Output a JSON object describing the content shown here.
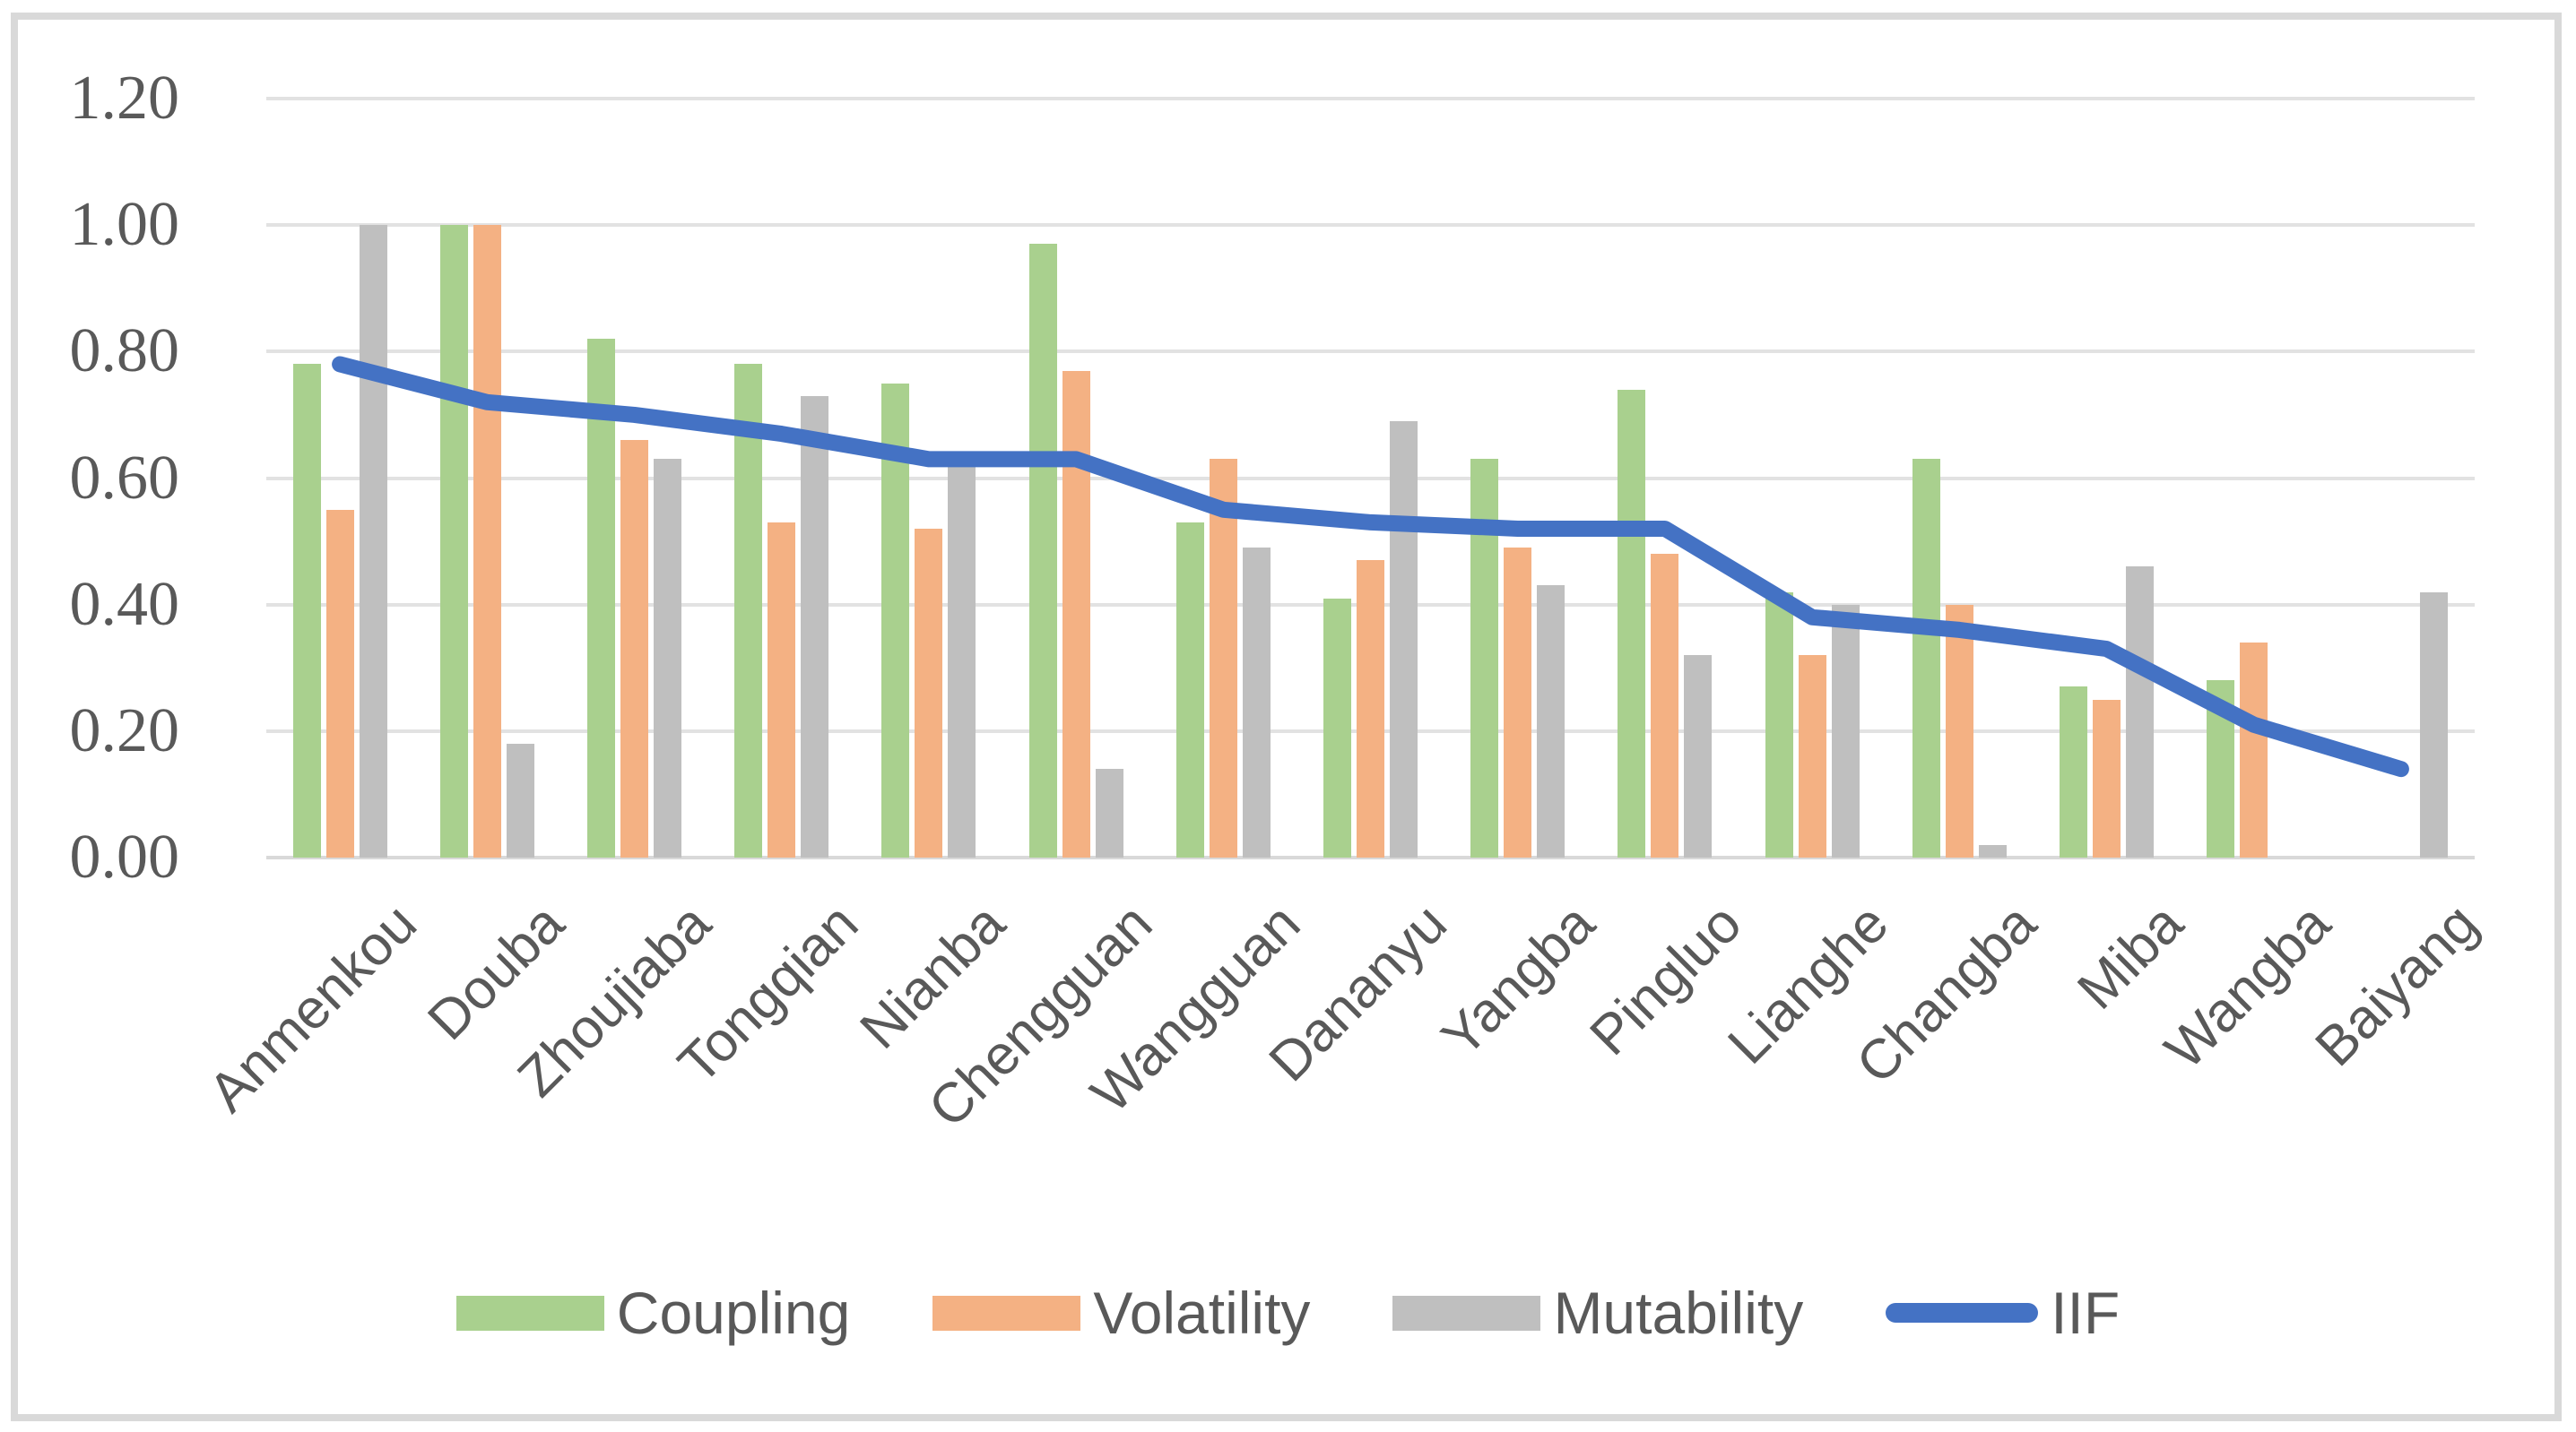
{
  "chart_data": {
    "type": "bar",
    "subtype": "grouped-bars-with-line-overlay",
    "title": "",
    "xlabel": "",
    "ylabel": "",
    "categories": [
      "Anmenkou",
      "Douba",
      "Zhoujiaba",
      "Tongqian",
      "Nianba",
      "Chengguan",
      "Wangguan",
      "Dananyu",
      "Yangba",
      "Pingluo",
      "Lianghe",
      "Changba",
      "Miba",
      "Wangba",
      "Baiyang"
    ],
    "series": [
      {
        "name": "Coupling",
        "type": "bar",
        "color": "#A9D08E",
        "values": [
          0.78,
          1.0,
          0.82,
          0.78,
          0.75,
          0.97,
          0.53,
          0.41,
          0.63,
          0.74,
          0.42,
          0.63,
          0.27,
          0.28,
          null
        ]
      },
      {
        "name": "Volatility",
        "type": "bar",
        "color": "#F4B183",
        "values": [
          0.55,
          1.0,
          0.66,
          0.53,
          0.52,
          0.77,
          0.63,
          0.47,
          0.49,
          0.48,
          0.32,
          0.4,
          0.25,
          0.34,
          null
        ]
      },
      {
        "name": "Mutability",
        "type": "bar",
        "color": "#BFBFBF",
        "values": [
          1.0,
          0.18,
          0.63,
          0.73,
          0.62,
          0.14,
          0.49,
          0.69,
          0.43,
          0.32,
          0.4,
          0.02,
          0.46,
          null,
          0.42
        ]
      },
      {
        "name": "IIF",
        "type": "line",
        "color": "#4472C4",
        "values": [
          0.78,
          0.72,
          0.7,
          0.67,
          0.63,
          0.63,
          0.55,
          0.53,
          0.52,
          0.52,
          0.38,
          0.36,
          0.33,
          0.21,
          0.14
        ]
      }
    ],
    "ylim": [
      0.0,
      1.2
    ],
    "yticks": [
      {
        "label": "0.00",
        "value": 0.0
      },
      {
        "label": "0.20",
        "value": 0.2
      },
      {
        "label": "0.40",
        "value": 0.4
      },
      {
        "label": "0.60",
        "value": 0.6
      },
      {
        "label": "0.80",
        "value": 0.8
      },
      {
        "label": "1.00",
        "value": 1.0
      },
      {
        "label": "1.20",
        "value": 1.2
      }
    ],
    "grid": true,
    "legend_position": "bottom",
    "legend_entries": [
      "Coupling",
      "Volatility",
      "Mutability",
      "IIF"
    ]
  },
  "colors": {
    "coupling_green": "#A9D08E",
    "volatility_orange": "#F4B183",
    "mutability_gray": "#BFBFBF",
    "iif_blue": "#4472C4",
    "axis_text": "#595959",
    "gridline": "#E2E2E2",
    "chart_border": "#D9D9D9",
    "background": "#FFFFFF"
  }
}
